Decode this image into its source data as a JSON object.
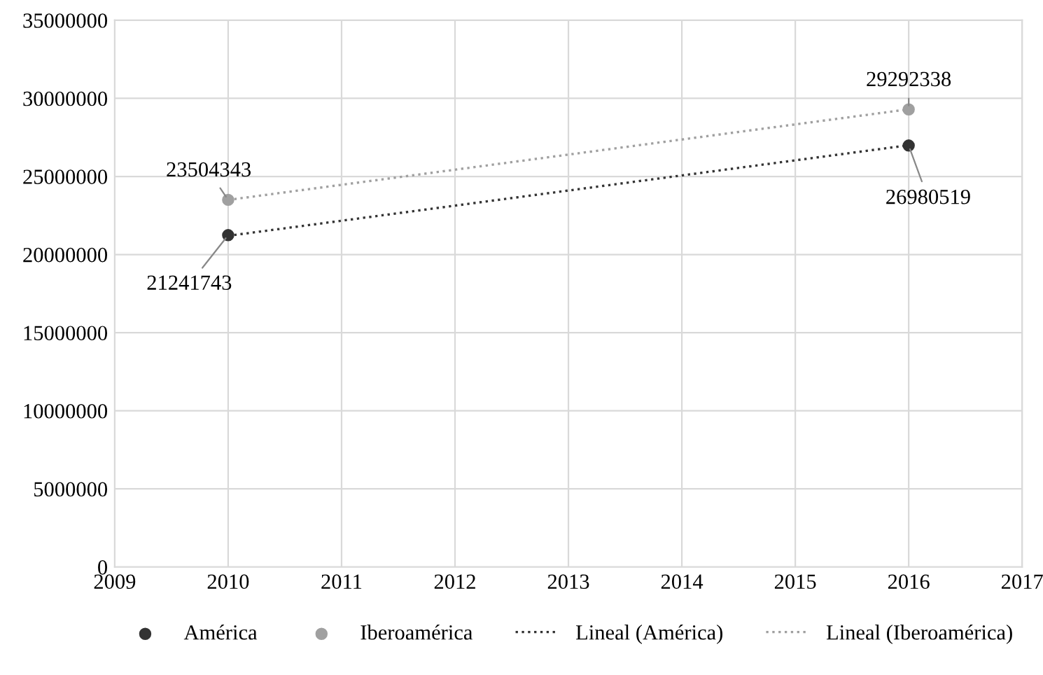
{
  "chart_data": {
    "type": "scatter",
    "x": [
      2010,
      2016
    ],
    "xlim": [
      2009,
      2017
    ],
    "xticks": [
      2009,
      2010,
      2011,
      2012,
      2013,
      2014,
      2015,
      2016,
      2017
    ],
    "ylim": [
      0,
      35000000
    ],
    "yticks": [
      0,
      5000000,
      10000000,
      15000000,
      20000000,
      25000000,
      30000000,
      35000000
    ],
    "grid": true,
    "legend": "bottom",
    "marker": "circle",
    "series": [
      {
        "name": "América",
        "color": "#333333",
        "values": [
          21241743,
          26980519
        ],
        "value_labels": [
          "21241743",
          "26980519"
        ]
      },
      {
        "name": "Iberoamérica",
        "color": "#a0a0a0",
        "values": [
          23504343,
          29292338
        ],
        "value_labels": [
          "23504343",
          "29292338"
        ]
      },
      {
        "name": "Lineal (América)",
        "type": "line",
        "line_style": "dotted",
        "marker": "none",
        "color": "#333333",
        "values": [
          21200000,
          27000000
        ]
      },
      {
        "name": "Lineal (Iberoamérica)",
        "type": "line",
        "line_style": "dotted",
        "marker": "none",
        "color": "#a0a0a0",
        "values": [
          23500000,
          29300000
        ]
      }
    ]
  }
}
